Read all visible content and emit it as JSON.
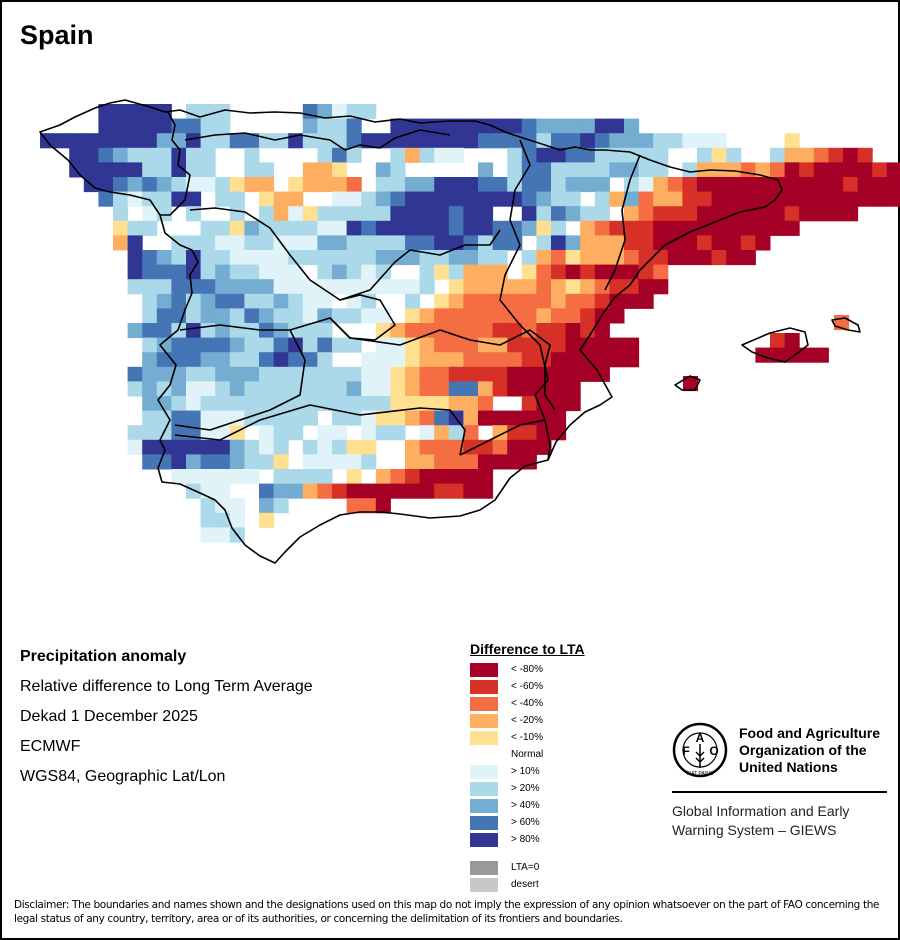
{
  "title": "Spain",
  "info": {
    "heading": "Precipitation anomaly",
    "subtitle": "Relative difference to Long Term Average",
    "period": "Dekad 1 December 2025",
    "source": "ECMWF",
    "projection": "WGS84, Geographic Lat/Lon"
  },
  "legend": {
    "title": "Difference to LTA",
    "items": [
      {
        "code": "5",
        "label": "< -80%",
        "color": "#a50026"
      },
      {
        "code": "4",
        "label": "< -60%",
        "color": "#d73027"
      },
      {
        "code": "3",
        "label": "< -40%",
        "color": "#f46d43"
      },
      {
        "code": "2",
        "label": "< -20%",
        "color": "#fdae61"
      },
      {
        "code": "1",
        "label": "< -10%",
        "color": "#fee090"
      },
      {
        "code": "0",
        "label": "Normal",
        "color": "#ffffff"
      },
      {
        "code": "a",
        "label": "> 10%",
        "color": "#e0f3f8"
      },
      {
        "code": "b",
        "label": "> 20%",
        "color": "#abd9e9"
      },
      {
        "code": "c",
        "label": "> 40%",
        "color": "#74add1"
      },
      {
        "code": "d",
        "label": "> 60%",
        "color": "#4575b4"
      },
      {
        "code": "e",
        "label": "> 80%",
        "color": "#313695"
      }
    ],
    "extra": [
      {
        "label": "LTA=0",
        "color": "#999999"
      },
      {
        "label": "desert",
        "color": "#c8c8c8"
      }
    ]
  },
  "org": {
    "name_line1": "Food and Agriculture",
    "name_line2": "Organization of the",
    "name_line3": "United Nations",
    "system_line1": "Global Information and Early",
    "system_line2": "Warning System – GIEWS",
    "logo_letters": [
      "F",
      "A",
      "O"
    ],
    "logo_motto": "FIAT PANIS"
  },
  "disclaimer": "Disclaimer: The boundaries and names shown and the designations used on this map do not imply the expression of any opinion whatsoever on the part of FAO concerning the legal status of any country, territory, area or of its authorities, or concerning the delimitation of its frontiers and boundaries.",
  "map_grid": {
    "rows": [
      "....eeeee.bbb.....dcabb......",
      "....eeeeeddbb.....cbbd..eeeeeeeeedcccceec......",
      "eeeeeeeeccebbddbbebbbdeeeeeeeeddddbddedcccbbaaa....1.",
      "..eedcbbbebb..b0000bdb00b2baa000bdeeddbbbbb00b1b00b223454",
      "..eeeeebbebb00bb0022100cb00000c0bddbbbbccbb0b22232354555545",
      "...eedcdcbaab1220122230bbcceeeddbddbccc0ba2345555555555455543",
      "....dbabbee0bb012200aabcdeeeeeeeedcbb0b2c3224455555555555555",
      ".....b0ab0b00b0b2a1bbbbbeeeedee00ebdcbb02344455555545555",
      ".....1bb000bb1cbbbbaaedeeeeedeeddc1b0234445555555555",
      ".....2e00bbbaabbaaaccbbbbddeedbdd0bec2224455545545",
      ".....0edcbebbaaaabbbbbbcccbbccbb0b231222344555455",
      "......edddebcbbaaa0bcbab00b1b22201345455543",
      "......bbbdddccccaaaaaaaaaab0122222321234455",
      "......0bcdbcddbbcbaa0ab00b0123333332334555",
      ".......bddbccbdcbbacbbaa0123333333233455",
      "......cddbebcbbdcbbb0001233333344344545",
      ".......bcddddcbbdebdbb0aa1233322444455555",
      ".......cdddccbbdeddb00aaa1222333344555555",
      "......dcccbbcccbbbbbbbaa123344445555555",
      "......bcbcaabcbbbbbbbcaa1233dd2455555",
      ".......ccbabbbbbbbbbbbbb1111223004555",
      ".......bbddaaabbbbb0bba1123de2555555",
      "......bbbddaa10abb0aa0abb0a2b3024455",
      "......aeeeeeecbab0bab11002333443555",
      ".......ddecddcbb10aaaab00223335555",
      ".........aaaaaa0bbbb01023455555",
      "..........baa00dcc2345555554455",
      "...........baa0cb0000335",
      "...........bba01",
      "...........aab"
    ],
    "islands": [
      {
        "name": "Mallorca",
        "cells": [
          "4@0,0",
          "5@1,0",
          "5@-1,1",
          "5@0,1",
          "5@1,1",
          "5@2,1",
          "5@3,1"
        ]
      },
      {
        "name": "Menorca",
        "cells": [
          "3@0,0"
        ]
      },
      {
        "name": "Ibiza",
        "cells": [
          "5@0,0"
        ]
      }
    ]
  }
}
